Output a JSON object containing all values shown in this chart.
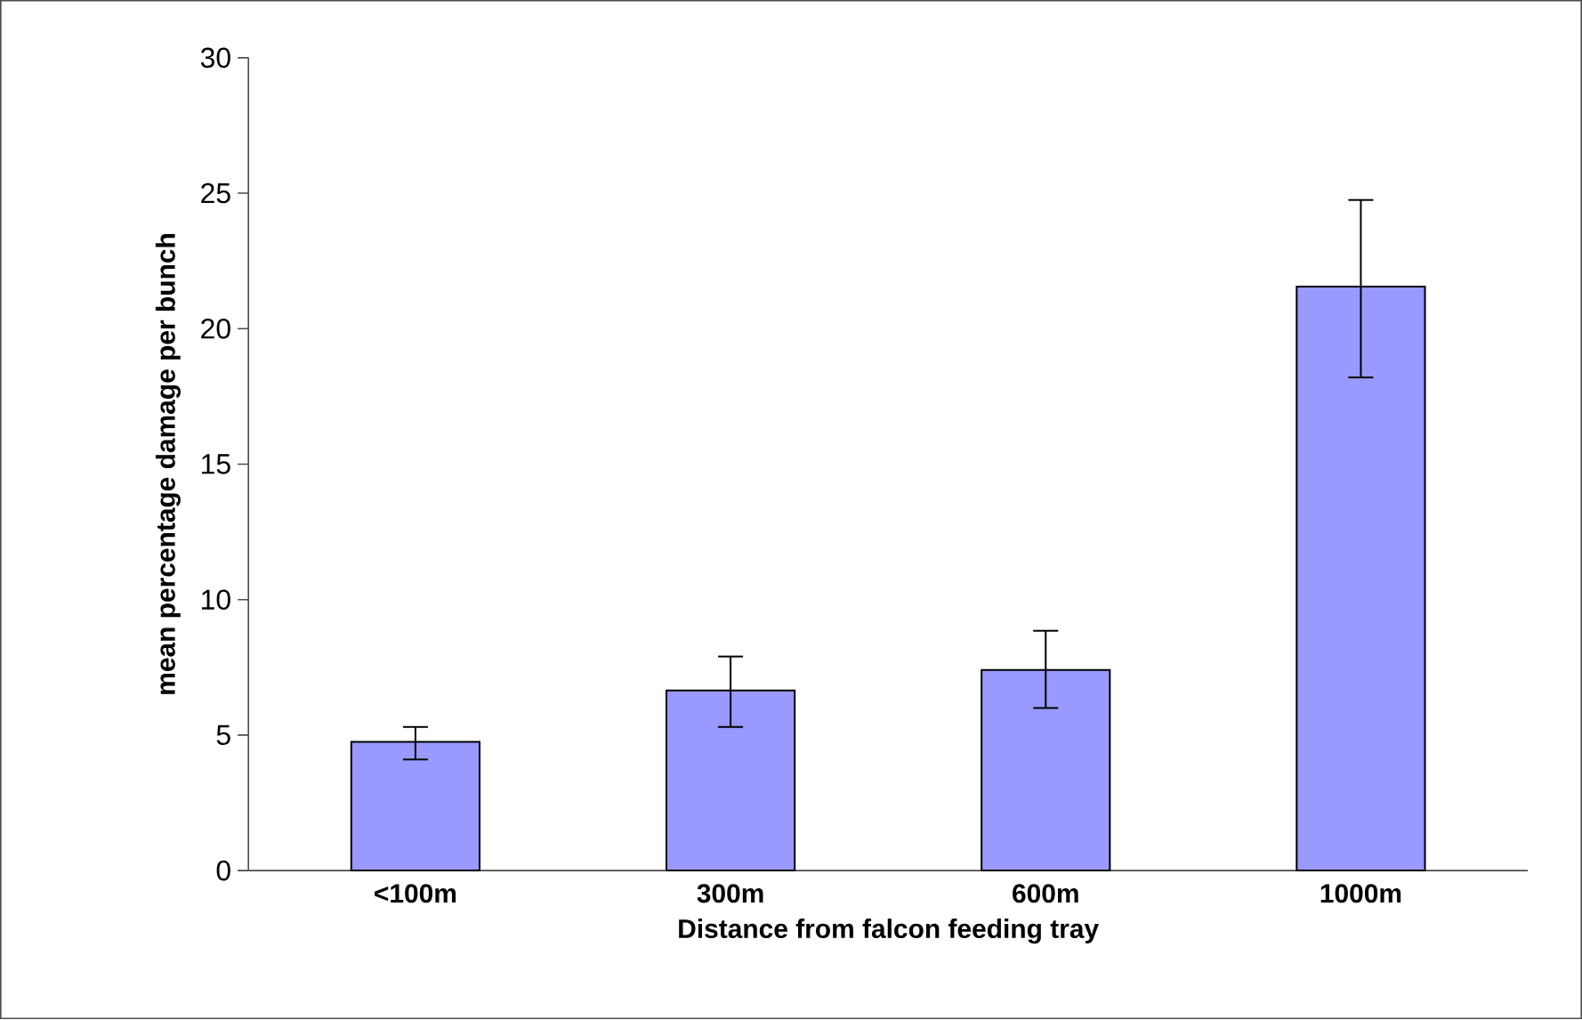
{
  "chart_data": {
    "type": "bar",
    "xlabel": "Distance from falcon feeding tray",
    "ylabel": "mean percentage damage per bunch",
    "categories": [
      "<100m",
      "300m",
      "600m",
      "1000m"
    ],
    "values": [
      4.75,
      6.65,
      7.4,
      21.55
    ],
    "errors": [
      [
        4.1,
        5.3
      ],
      [
        5.3,
        7.9
      ],
      [
        6.0,
        8.85
      ],
      [
        18.2,
        24.75
      ]
    ],
    "color": "#9999ff",
    "ylim": [
      0,
      30
    ],
    "yticks": [
      0,
      5,
      10,
      15,
      20,
      25,
      30
    ],
    "grid": false
  }
}
